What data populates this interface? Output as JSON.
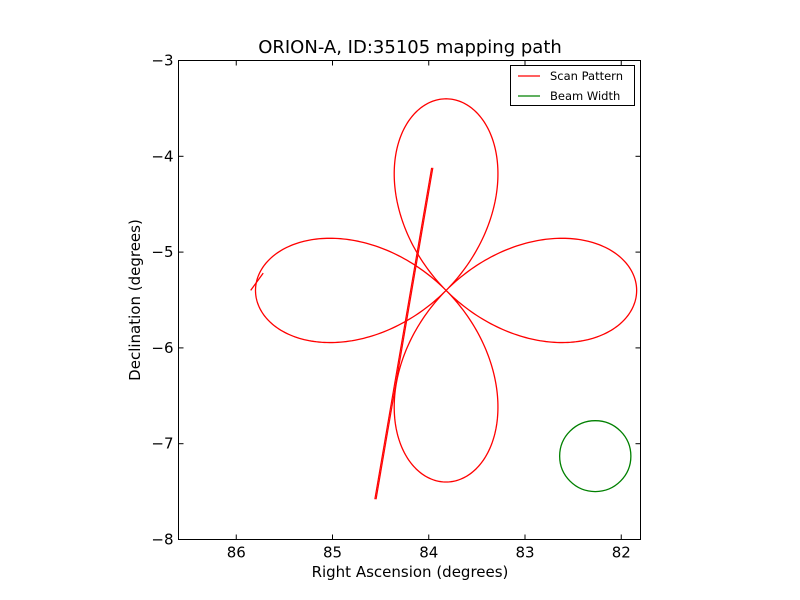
{
  "chart_data": {
    "type": "line",
    "title": "ORION-A, ID:35105 mapping path",
    "xlabel": "Right Ascension (degrees)",
    "ylabel": "Declination (degrees)",
    "xlim": [
      86.6,
      81.8
    ],
    "ylim": [
      -8,
      -3
    ],
    "x_ticks": [
      86,
      85,
      84,
      83,
      82
    ],
    "y_ticks": [
      -3,
      -4,
      -5,
      -6,
      -7,
      -8
    ],
    "x_tick_labels": [
      "86",
      "85",
      "84",
      "83",
      "82"
    ],
    "y_tick_labels": [
      "−3",
      "−4",
      "−5",
      "−6",
      "−7",
      "−8"
    ],
    "grid": false,
    "legend_position": "top-right",
    "colors": {
      "scan": "#ff0000",
      "beam": "#008000"
    },
    "series": [
      {
        "name": "Scan Pattern",
        "shape": "four-petal rose",
        "center": [
          83.82,
          -5.4
        ],
        "amplitude_ra": 1.98,
        "amplitude_dec": 2.0,
        "points": [
          [
            85.85,
            -5.4
          ],
          [
            85.8,
            -5.3
          ],
          [
            85.7,
            -5.15
          ],
          [
            85.45,
            -4.97
          ],
          [
            85.0,
            -4.86
          ],
          [
            84.55,
            -4.98
          ],
          [
            84.15,
            -5.2
          ],
          [
            83.82,
            -5.4
          ],
          [
            83.5,
            -5.68
          ],
          [
            83.05,
            -5.9
          ],
          [
            82.6,
            -5.94
          ],
          [
            82.1,
            -5.75
          ],
          [
            81.83,
            -5.4
          ],
          [
            82.1,
            -5.05
          ],
          [
            82.6,
            -4.86
          ],
          [
            83.05,
            -4.9
          ],
          [
            83.5,
            -5.12
          ],
          [
            83.82,
            -5.4
          ],
          [
            84.1,
            -5.72
          ],
          [
            84.3,
            -6.2
          ],
          [
            84.3,
            -6.8
          ],
          [
            84.1,
            -7.25
          ],
          [
            83.82,
            -7.4
          ],
          [
            83.55,
            -7.25
          ],
          [
            83.35,
            -6.8
          ],
          [
            83.35,
            -6.2
          ],
          [
            83.55,
            -5.72
          ],
          [
            83.82,
            -5.4
          ],
          [
            84.1,
            -5.08
          ],
          [
            84.3,
            -4.6
          ],
          [
            84.3,
            -4.0
          ],
          [
            84.1,
            -3.55
          ],
          [
            83.82,
            -3.4
          ],
          [
            83.55,
            -3.55
          ],
          [
            83.35,
            -4.0
          ],
          [
            83.35,
            -4.6
          ],
          [
            83.55,
            -5.08
          ],
          [
            83.82,
            -5.4
          ],
          [
            84.15,
            -5.6
          ],
          [
            84.55,
            -5.82
          ],
          [
            85.0,
            -5.94
          ],
          [
            85.45,
            -5.83
          ],
          [
            85.75,
            -5.55
          ],
          [
            85.85,
            -5.4
          ]
        ]
      },
      {
        "name": "Scan Pattern line",
        "points": [
          [
            83.97,
            -4.12
          ],
          [
            84.56,
            -7.58
          ]
        ]
      },
      {
        "name": "Beam Width",
        "shape": "circle",
        "center": [
          82.27,
          -7.13
        ],
        "radius_ra": 0.37,
        "radius_dec": 0.37
      }
    ],
    "legend": [
      "Scan Pattern",
      "Beam Width"
    ]
  }
}
